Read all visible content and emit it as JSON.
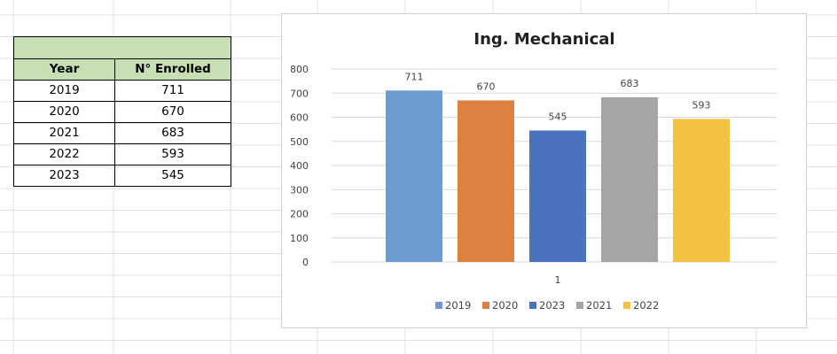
{
  "sheet": {
    "table": {
      "title": "",
      "headers": [
        "Year",
        "N° Enrolled"
      ],
      "rows": [
        {
          "year": "2019",
          "enrolled": "711"
        },
        {
          "year": "2020",
          "enrolled": "670"
        },
        {
          "year": "2021",
          "enrolled": "683"
        },
        {
          "year": "2022",
          "enrolled": "593"
        },
        {
          "year": "2023",
          "enrolled": "545"
        }
      ]
    }
  },
  "colors": {
    "header_fill": "#c6e0b4",
    "grid_line": "#e1e1e1",
    "chart_gridline": "#d9d9d9"
  },
  "chart_data": {
    "type": "bar",
    "title": "Ing. Mechanical",
    "categories": [
      "1"
    ],
    "series": [
      {
        "name": "2019",
        "values": [
          711
        ],
        "color": "#6b9bd1"
      },
      {
        "name": "2020",
        "values": [
          670
        ],
        "color": "#dd8143"
      },
      {
        "name": "2023",
        "values": [
          545
        ],
        "color": "#4a72be"
      },
      {
        "name": "2021",
        "values": [
          683
        ],
        "color": "#a5a5a5"
      },
      {
        "name": "2022",
        "values": [
          593
        ],
        "color": "#f4c141"
      }
    ],
    "ylim": [
      0,
      800
    ],
    "yticks": [
      0,
      100,
      200,
      300,
      400,
      500,
      600,
      700,
      800
    ],
    "grid": true,
    "data_labels": true,
    "legend": "bottom",
    "xlabel": "",
    "ylabel": ""
  }
}
